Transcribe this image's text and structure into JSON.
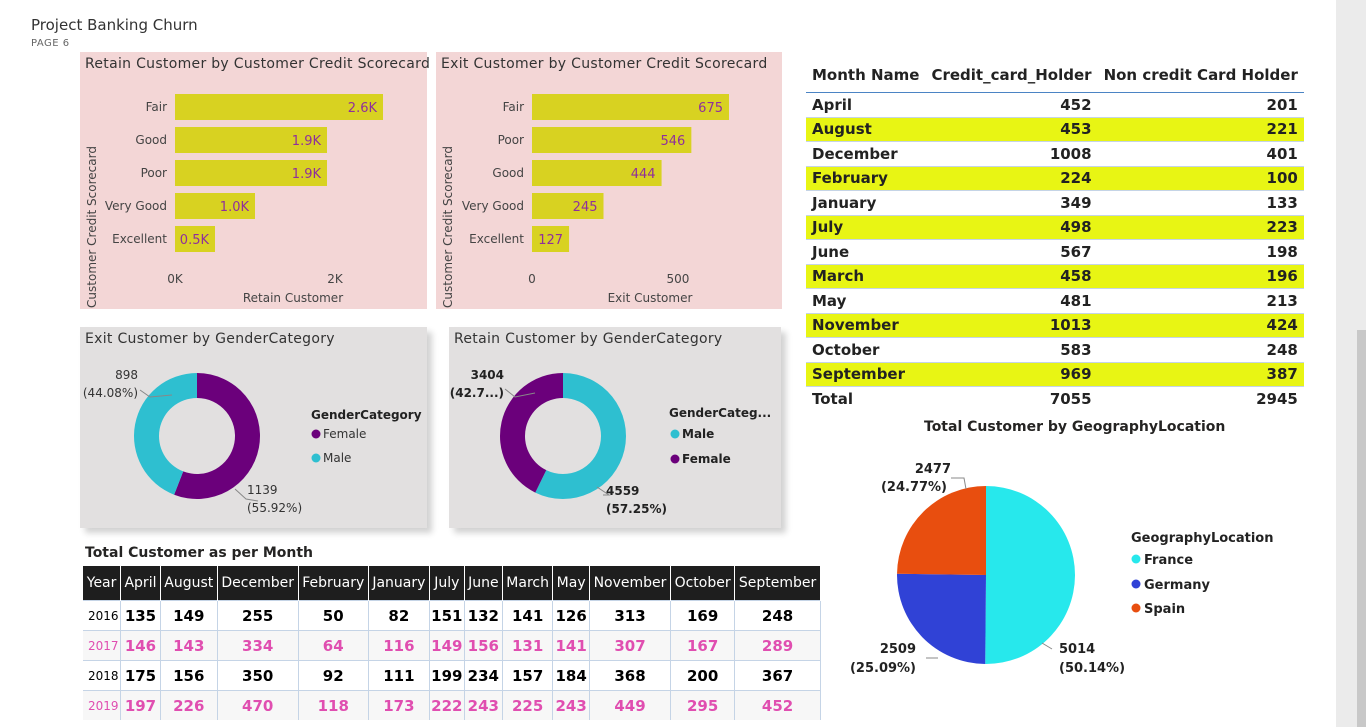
{
  "header": {
    "title": "Project Banking Churn",
    "page": "PAGE 6"
  },
  "colors": {
    "bar": "#d8d221",
    "bar_label": "#8f2f9b",
    "female": "#6b007b",
    "male": "#2ebfd0",
    "france": "#27e8ec",
    "germany": "#3042d6",
    "spain": "#e84e0f",
    "highlight": "#e8f514"
  },
  "retain_score": {
    "title": "Retain Customer by Customer Credit Scorecard",
    "ylabel": "Customer Credit Scorecard",
    "xlabel": "Retain Customer",
    "ticks": [
      "0K",
      "2K"
    ],
    "categories": [
      "Fair",
      "Good",
      "Poor",
      "Very Good",
      "Excellent"
    ],
    "labels": [
      "2.6K",
      "1.9K",
      "1.9K",
      "1.0K",
      "0.5K"
    ]
  },
  "exit_score": {
    "title": "Exit Customer by Customer Credit Scorecard",
    "ylabel": "Customer Credit Scorecard",
    "xlabel": "Exit Customer",
    "ticks": [
      "0",
      "500"
    ],
    "categories": [
      "Fair",
      "Poor",
      "Good",
      "Very Good",
      "Excellent"
    ],
    "labels": [
      "675",
      "546",
      "444",
      "245",
      "127"
    ]
  },
  "exit_gender": {
    "title": "Exit Customer by GenderCategory",
    "legend_title": "GenderCategory",
    "legend": [
      "Female",
      "Male"
    ],
    "male_value": "898",
    "male_pct": "(44.08%)",
    "female_value": "1139",
    "female_pct": "(55.92%)"
  },
  "retain_gender": {
    "title": "Retain Customer by GenderCategory",
    "legend_title": "GenderCateg...",
    "legend": [
      "Male",
      "Female"
    ],
    "female_value": "3404",
    "female_pct": "(42.7...)",
    "male_value": "4559",
    "male_pct": "(57.25%)"
  },
  "month_table": {
    "headers": [
      "Month Name",
      "Credit_card_Holder",
      "Non credit Card Holder"
    ],
    "rows": [
      [
        "April",
        "452",
        "201"
      ],
      [
        "August",
        "453",
        "221"
      ],
      [
        "December",
        "1008",
        "401"
      ],
      [
        "February",
        "224",
        "100"
      ],
      [
        "January",
        "349",
        "133"
      ],
      [
        "July",
        "498",
        "223"
      ],
      [
        "June",
        "567",
        "198"
      ],
      [
        "March",
        "458",
        "196"
      ],
      [
        "May",
        "481",
        "213"
      ],
      [
        "November",
        "1013",
        "424"
      ],
      [
        "October",
        "583",
        "248"
      ],
      [
        "September",
        "969",
        "387"
      ]
    ],
    "total": [
      "Total",
      "7055",
      "2945"
    ]
  },
  "geo": {
    "title": "Total Customer by GeographyLocation",
    "legend_title": "GeographyLocation",
    "legend": [
      "France",
      "Germany",
      "Spain"
    ],
    "france_value": "5014",
    "france_pct": "(50.14%)",
    "germany_value": "2509",
    "germany_pct": "(25.09%)",
    "spain_value": "2477",
    "spain_pct": "(24.77%)"
  },
  "year_table": {
    "title": "Total Customer as per Month",
    "headers": [
      "Year",
      "April",
      "August",
      "December",
      "February",
      "January",
      "July",
      "June",
      "March",
      "May",
      "November",
      "October",
      "September"
    ],
    "rows": [
      [
        "2016",
        "135",
        "149",
        "255",
        "50",
        "82",
        "151",
        "132",
        "141",
        "126",
        "313",
        "169",
        "248"
      ],
      [
        "2017",
        "146",
        "143",
        "334",
        "64",
        "116",
        "149",
        "156",
        "131",
        "141",
        "307",
        "167",
        "289"
      ],
      [
        "2018",
        "175",
        "156",
        "350",
        "92",
        "111",
        "199",
        "234",
        "157",
        "184",
        "368",
        "200",
        "367"
      ],
      [
        "2019",
        "197",
        "226",
        "470",
        "118",
        "173",
        "222",
        "243",
        "225",
        "243",
        "449",
        "295",
        "452"
      ]
    ]
  },
  "chart_data": [
    {
      "type": "bar",
      "orientation": "horizontal",
      "title": "Retain Customer by Customer Credit Scorecard",
      "xlabel": "Retain Customer",
      "ylabel": "Customer Credit Scorecard",
      "categories": [
        "Fair",
        "Good",
        "Poor",
        "Very Good",
        "Excellent"
      ],
      "values": [
        2600,
        1900,
        1900,
        1000,
        500
      ],
      "xlim": [
        0,
        3000
      ]
    },
    {
      "type": "bar",
      "orientation": "horizontal",
      "title": "Exit Customer by Customer Credit Scorecard",
      "xlabel": "Exit Customer",
      "ylabel": "Customer Credit Scorecard",
      "categories": [
        "Fair",
        "Poor",
        "Good",
        "Very Good",
        "Excellent"
      ],
      "values": [
        675,
        546,
        444,
        245,
        127
      ],
      "xlim": [
        0,
        700
      ]
    },
    {
      "type": "pie",
      "donut": true,
      "title": "Exit Customer by GenderCategory",
      "categories": [
        "Female",
        "Male"
      ],
      "values": [
        1139,
        898
      ],
      "percents": [
        55.92,
        44.08
      ]
    },
    {
      "type": "pie",
      "donut": true,
      "title": "Retain Customer by GenderCategory",
      "categories": [
        "Male",
        "Female"
      ],
      "values": [
        4559,
        3404
      ],
      "percents": [
        57.25,
        42.7
      ]
    },
    {
      "type": "pie",
      "title": "Total Customer by GeographyLocation",
      "categories": [
        "France",
        "Germany",
        "Spain"
      ],
      "values": [
        5014,
        2509,
        2477
      ],
      "percents": [
        50.14,
        25.09,
        24.77
      ]
    },
    {
      "type": "table",
      "columns": [
        "Month Name",
        "Credit_card_Holder",
        "Non credit Card Holder"
      ],
      "rows": [
        [
          "April",
          452,
          201
        ],
        [
          "August",
          453,
          221
        ],
        [
          "December",
          1008,
          401
        ],
        [
          "February",
          224,
          100
        ],
        [
          "January",
          349,
          133
        ],
        [
          "July",
          498,
          223
        ],
        [
          "June",
          567,
          198
        ],
        [
          "March",
          458,
          196
        ],
        [
          "May",
          481,
          213
        ],
        [
          "November",
          1013,
          424
        ],
        [
          "October",
          583,
          248
        ],
        [
          "September",
          969,
          387
        ]
      ],
      "total": [
        7055,
        2945
      ]
    },
    {
      "type": "table",
      "title": "Total Customer as per Month",
      "columns": [
        "Year",
        "April",
        "August",
        "December",
        "February",
        "January",
        "July",
        "June",
        "March",
        "May",
        "November",
        "October",
        "September"
      ],
      "rows": [
        [
          2016,
          135,
          149,
          255,
          50,
          82,
          151,
          132,
          141,
          126,
          313,
          169,
          248
        ],
        [
          2017,
          146,
          143,
          334,
          64,
          116,
          149,
          156,
          131,
          141,
          307,
          167,
          289
        ],
        [
          2018,
          175,
          156,
          350,
          92,
          111,
          199,
          234,
          157,
          184,
          368,
          200,
          367
        ],
        [
          2019,
          197,
          226,
          470,
          118,
          173,
          222,
          243,
          225,
          243,
          449,
          295,
          452
        ]
      ]
    }
  ]
}
